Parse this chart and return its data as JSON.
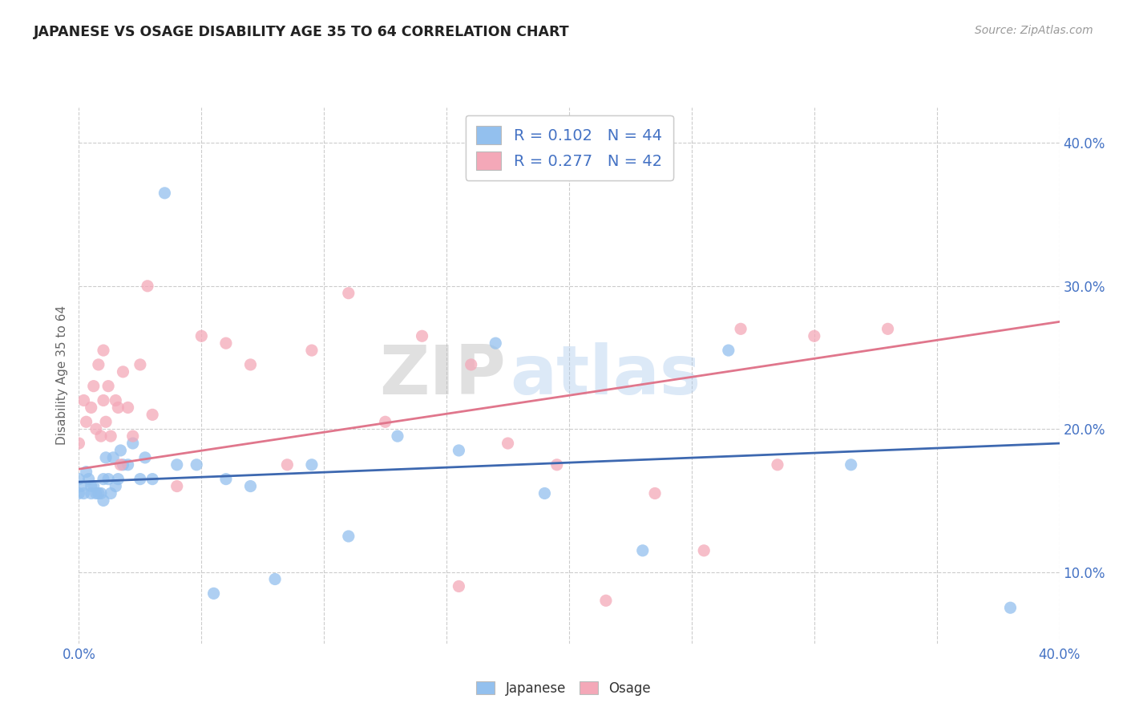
{
  "title": "JAPANESE VS OSAGE DISABILITY AGE 35 TO 64 CORRELATION CHART",
  "source_text": "Source: ZipAtlas.com",
  "ylabel_text": "Disability Age 35 to 64",
  "x_min": 0.0,
  "x_max": 0.4,
  "y_min": 0.05,
  "y_max": 0.425,
  "y_ticks": [
    0.1,
    0.2,
    0.3,
    0.4
  ],
  "y_tick_labels": [
    "10.0%",
    "20.0%",
    "30.0%",
    "40.0%"
  ],
  "japanese_color": "#93C0EE",
  "osage_color": "#F4A8B8",
  "japanese_line_color": "#3D68B0",
  "osage_line_color": "#E0768C",
  "japanese_R": 0.102,
  "japanese_N": 44,
  "osage_R": 0.277,
  "osage_N": 42,
  "legend_R_N_color": "#4472C4",
  "watermark_left": "ZIP",
  "watermark_right": "atlas",
  "background_color": "#FFFFFF",
  "grid_color": "#CCCCCC",
  "japanese_scatter_x": [
    0.0,
    0.0,
    0.001,
    0.002,
    0.003,
    0.004,
    0.005,
    0.005,
    0.006,
    0.007,
    0.008,
    0.009,
    0.01,
    0.01,
    0.011,
    0.012,
    0.013,
    0.014,
    0.015,
    0.016,
    0.017,
    0.018,
    0.02,
    0.022,
    0.025,
    0.027,
    0.03,
    0.035,
    0.04,
    0.048,
    0.055,
    0.06,
    0.07,
    0.08,
    0.095,
    0.11,
    0.13,
    0.155,
    0.17,
    0.19,
    0.23,
    0.265,
    0.315,
    0.38
  ],
  "japanese_scatter_y": [
    0.165,
    0.155,
    0.16,
    0.155,
    0.17,
    0.165,
    0.16,
    0.155,
    0.16,
    0.155,
    0.155,
    0.155,
    0.15,
    0.165,
    0.18,
    0.165,
    0.155,
    0.18,
    0.16,
    0.165,
    0.185,
    0.175,
    0.175,
    0.19,
    0.165,
    0.18,
    0.165,
    0.365,
    0.175,
    0.175,
    0.085,
    0.165,
    0.16,
    0.095,
    0.175,
    0.125,
    0.195,
    0.185,
    0.26,
    0.155,
    0.115,
    0.255,
    0.175,
    0.075
  ],
  "osage_scatter_x": [
    0.0,
    0.002,
    0.003,
    0.005,
    0.006,
    0.007,
    0.008,
    0.009,
    0.01,
    0.01,
    0.011,
    0.012,
    0.013,
    0.015,
    0.016,
    0.017,
    0.018,
    0.02,
    0.022,
    0.025,
    0.028,
    0.03,
    0.04,
    0.05,
    0.06,
    0.07,
    0.085,
    0.095,
    0.11,
    0.125,
    0.14,
    0.155,
    0.16,
    0.175,
    0.195,
    0.215,
    0.235,
    0.255,
    0.27,
    0.285,
    0.3,
    0.33
  ],
  "osage_scatter_y": [
    0.19,
    0.22,
    0.205,
    0.215,
    0.23,
    0.2,
    0.245,
    0.195,
    0.22,
    0.255,
    0.205,
    0.23,
    0.195,
    0.22,
    0.215,
    0.175,
    0.24,
    0.215,
    0.195,
    0.245,
    0.3,
    0.21,
    0.16,
    0.265,
    0.26,
    0.245,
    0.175,
    0.255,
    0.295,
    0.205,
    0.265,
    0.09,
    0.245,
    0.19,
    0.175,
    0.08,
    0.155,
    0.115,
    0.27,
    0.175,
    0.265,
    0.27
  ]
}
